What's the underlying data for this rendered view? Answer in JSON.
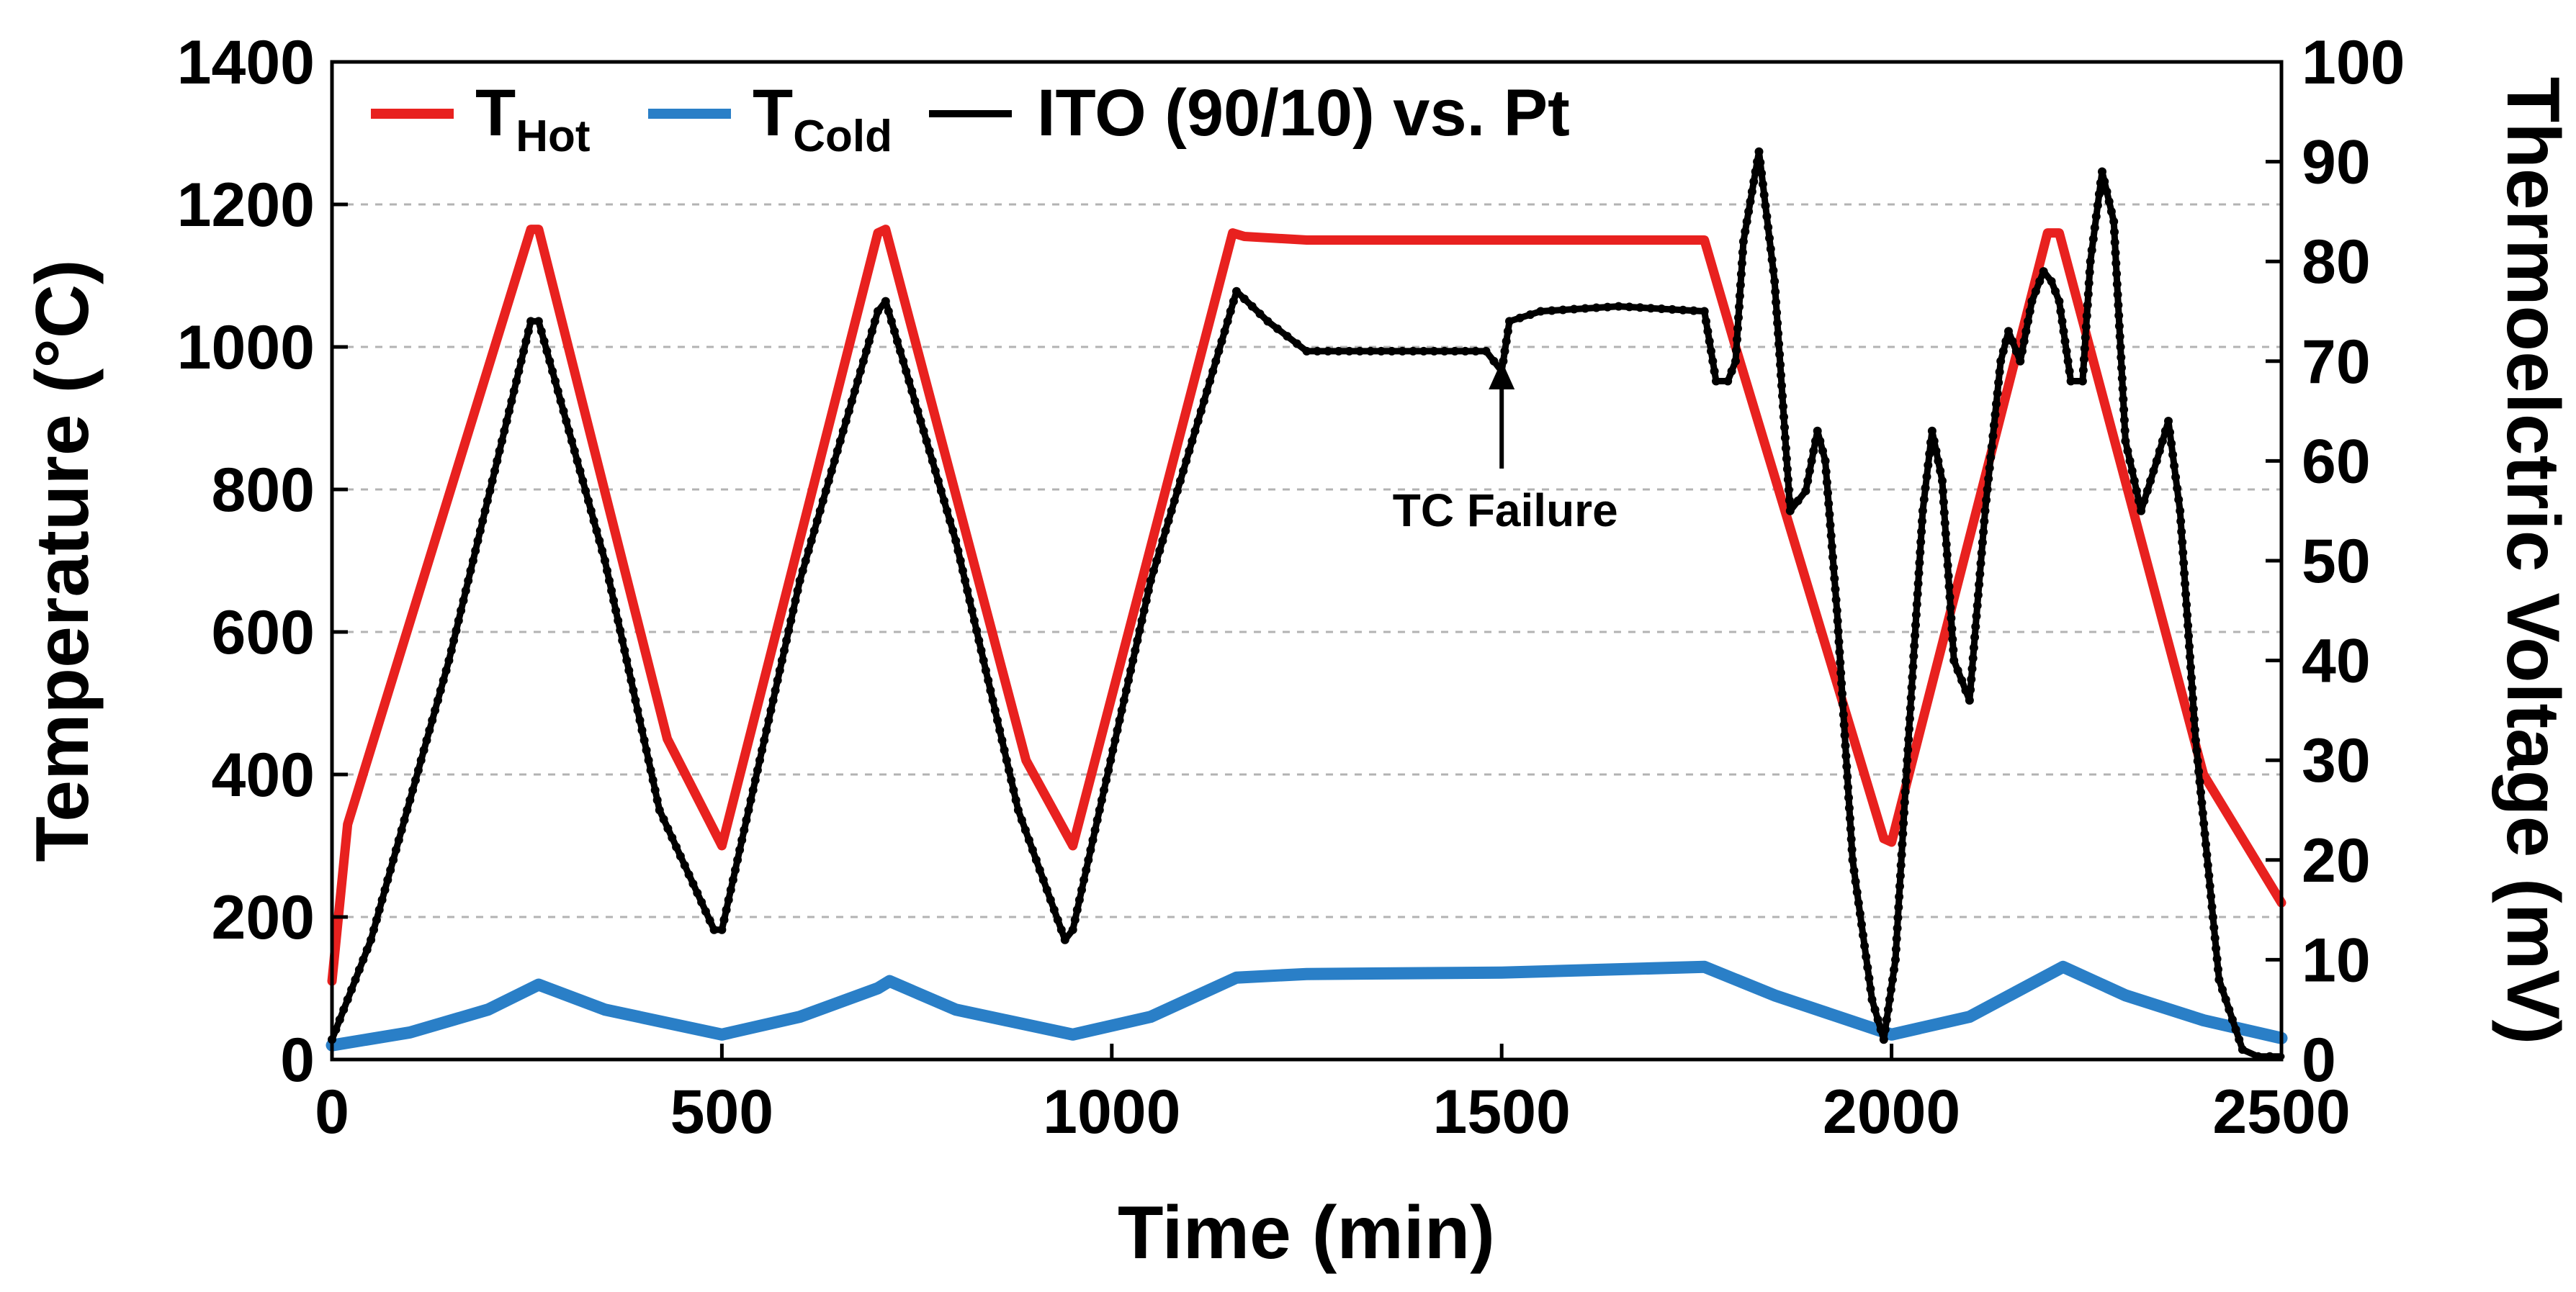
{
  "chart_data": {
    "type": "line",
    "title": "",
    "xlabel": "Time (min)",
    "ylabel": "Temperature (°C)",
    "y2label": "Thermoelctric Voltage (mV)",
    "xlim": [
      0,
      2500
    ],
    "ylim": [
      0,
      1400
    ],
    "y2lim": [
      0,
      100
    ],
    "xticks": [
      0,
      500,
      1000,
      1500,
      2000,
      2500
    ],
    "yticks": [
      0,
      200,
      400,
      600,
      800,
      1000,
      1200,
      1400
    ],
    "y2ticks": [
      0,
      10,
      20,
      30,
      40,
      50,
      60,
      70,
      80,
      90,
      100
    ],
    "grid": "horizontal dashed",
    "legend_position": "top-left",
    "legend": [
      {
        "main": "T",
        "sub": "Hot",
        "color": "#e8211f"
      },
      {
        "main": "T",
        "sub": "Cold",
        "color": "#2a7fc7"
      },
      {
        "main": "ITO (90/10) vs. Pt",
        "sub": "",
        "color": "#000000"
      }
    ],
    "annotation": {
      "text": "TC Failure",
      "x": 1500,
      "y": 995
    },
    "series": [
      {
        "name": "T_Hot",
        "axis": "left",
        "color": "#e8211f",
        "x": [
          0,
          20,
          255,
          265,
          430,
          500,
          700,
          710,
          890,
          950,
          1155,
          1170,
          1250,
          1760,
          1800,
          1990,
          2000,
          2200,
          2215,
          2400,
          2500
        ],
        "y": [
          110,
          330,
          1165,
          1165,
          450,
          300,
          1160,
          1165,
          420,
          300,
          1160,
          1155,
          1150,
          1150,
          1000,
          310,
          305,
          1160,
          1160,
          400,
          220
        ]
      },
      {
        "name": "T_Cold",
        "axis": "left",
        "color": "#2a7fc7",
        "x": [
          0,
          100,
          200,
          265,
          350,
          500,
          600,
          700,
          715,
          800,
          950,
          1050,
          1160,
          1250,
          1500,
          1760,
          1850,
          2000,
          2100,
          2220,
          2300,
          2400,
          2500
        ],
        "y": [
          20,
          38,
          70,
          105,
          70,
          35,
          60,
          100,
          110,
          70,
          35,
          60,
          115,
          120,
          122,
          130,
          90,
          35,
          60,
          130,
          90,
          55,
          30
        ]
      },
      {
        "name": "ITO (90/10) vs. Pt",
        "axis": "right",
        "color": "#000000",
        "x": [
          0,
          50,
          150,
          255,
          265,
          350,
          420,
          490,
          500,
          600,
          700,
          710,
          800,
          880,
          940,
          950,
          1050,
          1160,
          1200,
          1250,
          1400,
          1480,
          1500,
          1510,
          1550,
          1650,
          1760,
          1775,
          1790,
          1800,
          1810,
          1830,
          1850,
          1870,
          1890,
          1905,
          1915,
          1930,
          1950,
          1975,
          1990,
          2005,
          2020,
          2040,
          2052,
          2065,
          2080,
          2100,
          2120,
          2140,
          2150,
          2165,
          2180,
          2195,
          2205,
          2215,
          2230,
          2245,
          2255,
          2270,
          2285,
          2300,
          2320,
          2340,
          2355,
          2370,
          2390,
          2420,
          2450,
          2470,
          2500
        ],
        "y": [
          2,
          12,
          40,
          74,
          74,
          50,
          25,
          13,
          13,
          48,
          75,
          76,
          52,
          25,
          12,
          13,
          48,
          77,
          74,
          71,
          71,
          71,
          69,
          74,
          75,
          75.5,
          75,
          68,
          68,
          70,
          82,
          91,
          78,
          55,
          57,
          63,
          60,
          45,
          20,
          6,
          2,
          10,
          30,
          55,
          63,
          58,
          40,
          36,
          55,
          70,
          73,
          70,
          76,
          79,
          78,
          76,
          68,
          68,
          80,
          89,
          84,
          62,
          55,
          60,
          64,
          55,
          32,
          8,
          1,
          0.3,
          0.3
        ]
      }
    ]
  }
}
